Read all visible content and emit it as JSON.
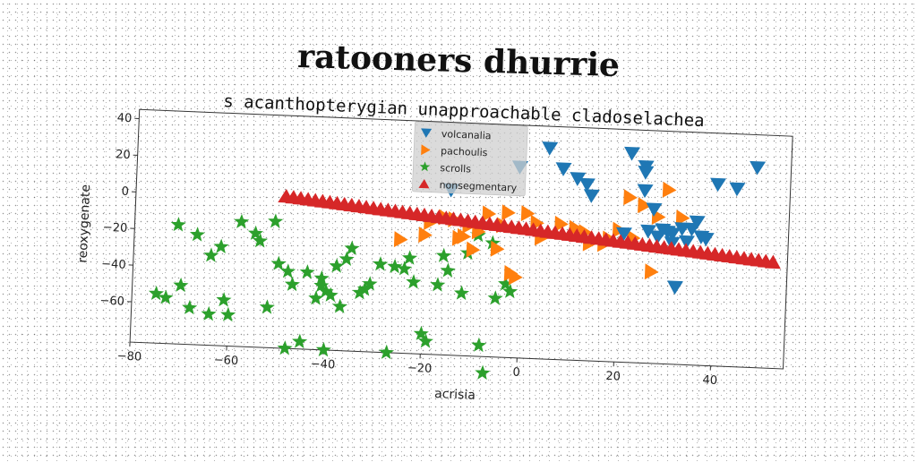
{
  "chart_data": {
    "type": "scatter",
    "title": "ratooners dhurrie",
    "subtitle": "s acanthopterygian unapproachable cladoselachea",
    "xlabel": "acrisia",
    "ylabel": "reoxygenate",
    "xlim": [
      -80,
      55
    ],
    "ylim": [
      -82,
      45
    ],
    "xticks": [
      -80,
      -60,
      -40,
      -20,
      0,
      20,
      40
    ],
    "yticks": [
      -60,
      -40,
      -20,
      0,
      20,
      40
    ],
    "grid": false,
    "legend_position": "top-center",
    "series": [
      {
        "name": "volcanalia",
        "marker": "triangle-down",
        "color": "#1f77b4",
        "x": [
          5,
          8,
          11,
          13,
          14,
          22,
          25,
          25,
          25,
          27,
          29,
          30,
          31,
          33,
          34,
          36,
          37,
          40,
          44,
          48,
          -1,
          -15,
          21,
          26,
          31,
          28,
          35,
          38,
          32
        ],
        "y": [
          33,
          22,
          17,
          14,
          8,
          32,
          25,
          22,
          12,
          2,
          -9,
          -10,
          -11,
          -8,
          -15,
          -4,
          -12,
          17,
          15,
          27,
          22,
          8,
          -12,
          -10,
          -16,
          -13,
          -8,
          -13,
          -40
        ]
      },
      {
        "name": "pachoulis",
        "marker": "triangle-right",
        "color": "#ff7f0e",
        "x": [
          -25,
          -20,
          -13,
          -11,
          -7,
          -4,
          -1,
          1,
          4,
          8,
          11,
          13,
          14,
          17,
          18,
          20,
          22,
          23,
          25,
          27,
          28,
          30,
          33,
          -16,
          -9,
          -3
        ],
        "y": [
          -20,
          -17,
          -18,
          -11,
          -4,
          -10,
          -38,
          -3,
          -16,
          -8,
          -10,
          -12,
          -18,
          -18,
          -15,
          -10,
          8,
          -14,
          4,
          -32,
          -2,
          13,
          -2,
          -7,
          -14,
          -3
        ],
        "tail_x": [
          -12,
          -10,
          -5,
          -19,
          -14,
          -2,
          3
        ],
        "tail_y": [
          -17,
          -24,
          -23,
          -10,
          -8,
          -36,
          -8
        ]
      },
      {
        "name": "scrolls",
        "marker": "star",
        "color": "#2ca02c",
        "x": [
          -75,
          -73,
          -71,
          -70,
          -68,
          -67,
          -64,
          -64,
          -62,
          -61,
          -60,
          -58,
          -55,
          -54,
          -52,
          -51,
          -48,
          -47,
          -45,
          -44,
          -41,
          -40,
          -39,
          -38,
          -36,
          -33,
          -32,
          -31,
          -27,
          -26,
          -24,
          -22,
          -20,
          -19,
          -16,
          -12,
          -9,
          -8,
          -5,
          -3,
          -2,
          -7,
          -15,
          -11
        ],
        "y": [
          -55,
          -57,
          -17,
          -50,
          -62,
          -22,
          -65,
          -33,
          -28,
          -57,
          -65,
          -14,
          -20,
          -24,
          -60,
          -13,
          -82,
          -47,
          -78,
          -40,
          -43,
          -82,
          -52,
          -36,
          -32,
          -50,
          -48,
          -45,
          -82,
          -35,
          -36,
          -43,
          -71,
          -75,
          -28,
          -48,
          -16,
          -76,
          -50,
          -42,
          -46,
          -91,
          -36,
          -26
        ],
        "extra_x": [
          -50,
          -48,
          -42,
          -41,
          -40,
          -37,
          -29,
          -35,
          -23,
          -17,
          -6
        ],
        "extra_y": [
          -36,
          -40,
          -54,
          -47,
          -50,
          -58,
          -34,
          -26,
          -30,
          -44,
          -20
        ]
      },
      {
        "name": "nonsegmentary",
        "marker": "triangle-up",
        "color": "#d62728",
        "x_start": -49,
        "x_end": 52,
        "count": 68,
        "y_start": 1,
        "y_end": -24
      }
    ]
  }
}
